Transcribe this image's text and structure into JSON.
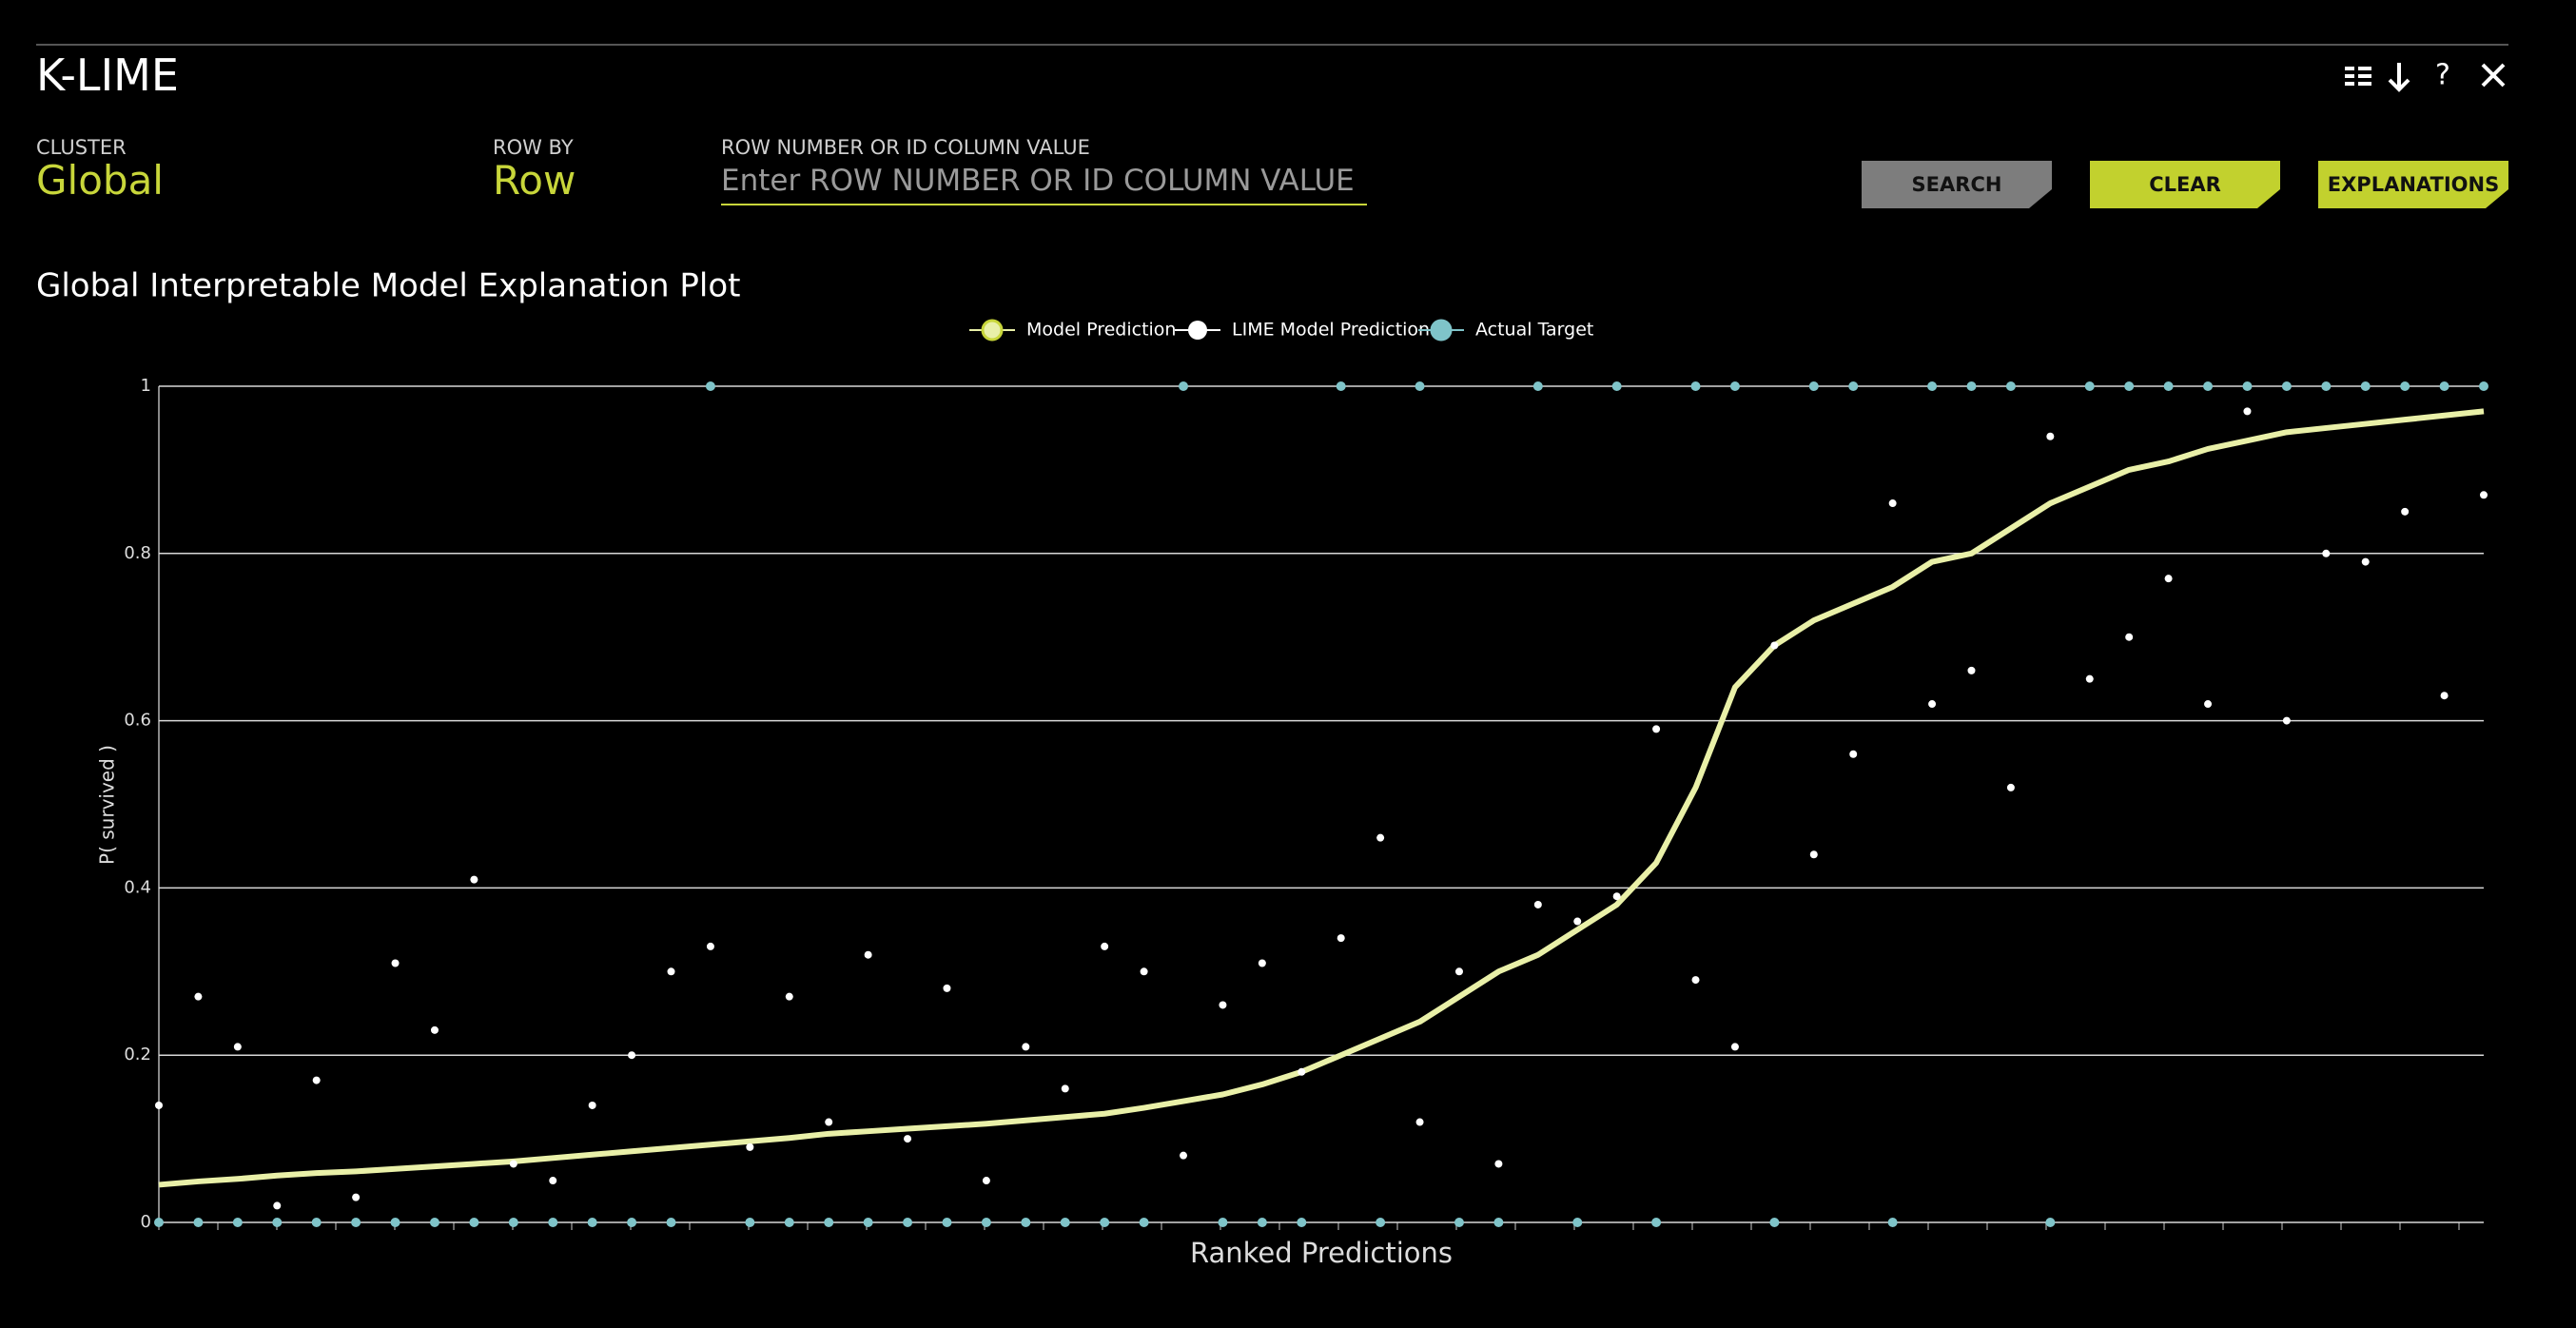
{
  "header": {
    "title": "K-LIME",
    "help": "?"
  },
  "controls": {
    "cluster": {
      "label": "CLUSTER",
      "value": "Global"
    },
    "row_by": {
      "label": "ROW BY",
      "value": "Row"
    },
    "row_input": {
      "label": "ROW NUMBER OR ID COLUMN VALUE",
      "placeholder": "Enter ROW NUMBER OR ID COLUMN VALUE"
    },
    "buttons": [
      "SEARCH",
      "CLEAR",
      "EXPLANATIONS"
    ]
  },
  "chart_data": {
    "type": "line",
    "title": "Global Interpretable Model Explanation Plot",
    "x_label": "Ranked Predictions",
    "y_label": "P( survived )",
    "ylim": [
      0,
      1
    ],
    "yticks": [
      0,
      0.2,
      0.4,
      0.6,
      0.8,
      1
    ],
    "grid": true,
    "series": [
      {
        "name": "Model Prediction",
        "color": "#e9f0a8",
        "style": "line",
        "values": [
          0.045,
          0.049,
          0.052,
          0.056,
          0.059,
          0.061,
          0.064,
          0.067,
          0.07,
          0.073,
          0.077,
          0.081,
          0.085,
          0.089,
          0.093,
          0.097,
          0.101,
          0.106,
          0.109,
          0.112,
          0.115,
          0.118,
          0.122,
          0.126,
          0.13,
          0.137,
          0.145,
          0.153,
          0.165,
          0.18,
          0.2,
          0.22,
          0.24,
          0.27,
          0.3,
          0.32,
          0.35,
          0.38,
          0.43,
          0.52,
          0.64,
          0.69,
          0.72,
          0.74,
          0.76,
          0.79,
          0.8,
          0.83,
          0.86,
          0.88,
          0.9,
          0.91,
          0.925,
          0.935,
          0.945,
          0.95,
          0.955,
          0.96,
          0.965,
          0.97
        ]
      },
      {
        "name": "LIME Model Prediction",
        "color": "#ffffff",
        "style": "points",
        "values": [
          0.14,
          0.27,
          0.21,
          0.02,
          0.17,
          0.03,
          0.31,
          0.23,
          0.41,
          0.07,
          0.05,
          0.14,
          0.2,
          0.3,
          0.33,
          0.09,
          0.27,
          0.12,
          0.32,
          0.1,
          0.28,
          0.05,
          0.21,
          0.16,
          0.33,
          0.3,
          0.08,
          0.26,
          0.31,
          0.18,
          0.34,
          0.46,
          0.12,
          0.3,
          0.07,
          0.38,
          0.36,
          0.39,
          0.59,
          0.29,
          0.21,
          0.69,
          0.44,
          0.56,
          0.86,
          0.62,
          0.66,
          0.52,
          0.94,
          0.65,
          0.7,
          0.77,
          0.62,
          0.97,
          0.6,
          0.8,
          0.79,
          0.85,
          0.63,
          0.87
        ]
      },
      {
        "name": "Actual Target",
        "color": "#7fc4c9",
        "style": "points",
        "values": [
          0,
          0,
          0,
          0,
          0,
          0,
          0,
          0,
          0,
          0,
          0,
          0,
          0,
          0,
          1,
          0,
          0,
          0,
          0,
          0,
          0,
          0,
          0,
          0,
          0,
          0,
          1,
          0,
          0,
          0,
          1,
          0,
          1,
          0,
          0,
          1,
          0,
          1,
          0,
          1,
          1,
          0,
          1,
          1,
          0,
          1,
          1,
          1,
          0,
          1,
          1,
          1,
          1,
          1,
          1,
          1,
          1,
          1,
          1,
          1
        ]
      }
    ]
  }
}
